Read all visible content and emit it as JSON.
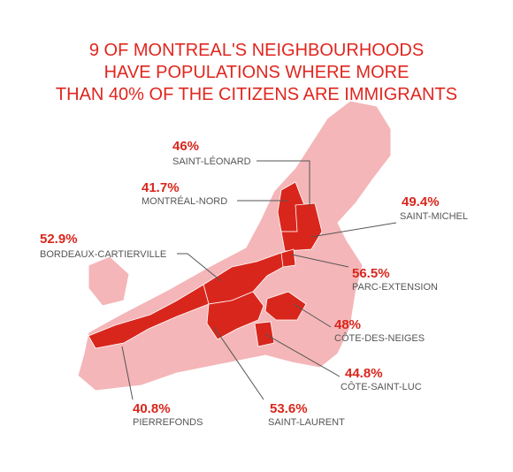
{
  "title": [
    "9 OF MONTREAL'S NEIGHBOURHOODS",
    "HAVE POPULATIONS WHERE MORE",
    "THAN 40% OF THE CITIZENS ARE IMMIGRANTS"
  ],
  "neighbourhoods": [
    {
      "pct": "46%",
      "name": "SAINT-LÉONARD"
    },
    {
      "pct": "41.7%",
      "name": "MONTRÉAL-NORD"
    },
    {
      "pct": "49.4%",
      "name": "SAINT-MICHEL"
    },
    {
      "pct": "52.9%",
      "name": "BORDEAUX-CARTIERVILLE"
    },
    {
      "pct": "56.5%",
      "name": "PARC-EXTENSION"
    },
    {
      "pct": "48%",
      "name": "CÔTE-DES-NEIGES"
    },
    {
      "pct": "44.8%",
      "name": "CÔTE-SAINT-LUC"
    },
    {
      "pct": "40.8%",
      "name": "PIERREFONDS"
    },
    {
      "pct": "53.6%",
      "name": "SAINT-LAURENT"
    }
  ]
}
